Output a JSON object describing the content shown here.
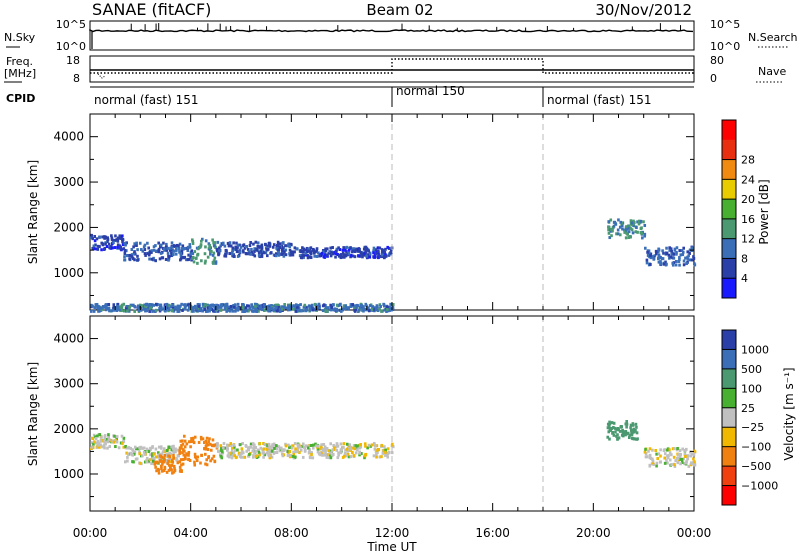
{
  "header": {
    "station": "SANAE (fitACF)",
    "beam": "Beam 02",
    "date": "30/Nov/2012"
  },
  "top_panels": {
    "nsky": {
      "label": "N.Sky",
      "ticks": [
        "10^5",
        "10^0"
      ],
      "right_label": "N.Search",
      "right_ticks": [
        "10^5",
        "10^0"
      ]
    },
    "freq": {
      "label_line1": "Freq.",
      "label_line2": "[MHz]",
      "ticks": [
        "18",
        "8"
      ],
      "right_label": "Nave",
      "right_ticks": [
        "80",
        "0"
      ]
    },
    "cpid": {
      "label": "CPID",
      "modes": [
        {
          "text": "normal (fast) 151",
          "start_h": 0,
          "end_h": 12
        },
        {
          "text": "normal 150",
          "start_h": 12,
          "end_h": 18
        },
        {
          "text": "normal (fast) 151",
          "start_h": 18,
          "end_h": 24
        }
      ]
    }
  },
  "x_axis": {
    "label": "Time UT",
    "tick_labels": [
      "00:00",
      "04:00",
      "08:00",
      "12:00",
      "16:00",
      "20:00",
      "00:00"
    ]
  },
  "colors": {
    "frame": "#000000",
    "divider": "#bbbbbb",
    "power_scale": [
      "#1a1aff",
      "#2a3fa8",
      "#3a6fb8",
      "#4a9970",
      "#48b030",
      "#e8cc00",
      "#f08a10",
      "#e83010",
      "#ff0000"
    ],
    "velocity_scale": [
      "#2a3fa8",
      "#3a6fb8",
      "#4a9970",
      "#48b030",
      "#c0c0c0",
      "#f0b800",
      "#f08010",
      "#f04010",
      "#ff0000"
    ]
  },
  "chart_data": [
    {
      "type": "heatmap",
      "name": "power",
      "ylabel": "Slant Range [km]",
      "ylim": [
        180,
        4500
      ],
      "xlim": [
        0,
        24
      ],
      "y_ticks": [
        "1000",
        "2000",
        "3000",
        "4000"
      ],
      "colorbar": {
        "label": "Power [dB]",
        "range": [
          0,
          32
        ],
        "tick_labels": [
          "4",
          "8",
          "12",
          "16",
          "20",
          "24",
          "28"
        ]
      },
      "bands": [
        {
          "t_start": 0.0,
          "t_end": 1.3,
          "range_center": 1700,
          "range_width": 200,
          "value": 6
        },
        {
          "t_start": 1.3,
          "t_end": 4.0,
          "range_center": 1500,
          "range_width": 250,
          "value": 8
        },
        {
          "t_start": 4.0,
          "t_end": 5.0,
          "range_center": 1500,
          "range_width": 350,
          "value": 13
        },
        {
          "t_start": 5.0,
          "t_end": 8.0,
          "range_center": 1550,
          "range_width": 200,
          "value": 7
        },
        {
          "t_start": 8.0,
          "t_end": 12.0,
          "range_center": 1480,
          "range_width": 150,
          "value": 6
        },
        {
          "t_start": 20.5,
          "t_end": 22.0,
          "range_center": 2000,
          "range_width": 250,
          "value": 12
        },
        {
          "t_start": 22.0,
          "t_end": 24.0,
          "range_center": 1400,
          "range_width": 250,
          "value": 9
        },
        {
          "t_start": 0.0,
          "t_end": 12.0,
          "range_center": 260,
          "range_width": 100,
          "value": 10
        }
      ]
    },
    {
      "type": "heatmap",
      "name": "velocity",
      "ylabel": "Slant Range [km]",
      "ylim": [
        180,
        4500
      ],
      "xlim": [
        0,
        24
      ],
      "y_ticks": [
        "1000",
        "2000",
        "3000",
        "4000"
      ],
      "colorbar": {
        "label": "Velocity [m s⁻¹]",
        "tick_labels": [
          "1000",
          "500",
          "100",
          "25",
          "−25",
          "−100",
          "−500",
          "−1000"
        ]
      },
      "bands": [
        {
          "t_start": 0.0,
          "t_end": 1.3,
          "range_center": 1750,
          "range_width": 200,
          "value": 0
        },
        {
          "t_start": 1.3,
          "t_end": 3.5,
          "range_center": 1450,
          "range_width": 250,
          "value": 0
        },
        {
          "t_start": 2.5,
          "t_end": 3.6,
          "range_center": 1250,
          "range_width": 250,
          "value": -200
        },
        {
          "t_start": 3.5,
          "t_end": 5.0,
          "range_center": 1550,
          "range_width": 400,
          "value": -150
        },
        {
          "t_start": 5.0,
          "t_end": 12.0,
          "range_center": 1550,
          "range_width": 200,
          "value": 0
        },
        {
          "t_start": 20.5,
          "t_end": 21.8,
          "range_center": 2000,
          "range_width": 250,
          "value": 150
        },
        {
          "t_start": 22.0,
          "t_end": 24.0,
          "range_center": 1400,
          "range_width": 250,
          "value": 0
        }
      ]
    }
  ]
}
